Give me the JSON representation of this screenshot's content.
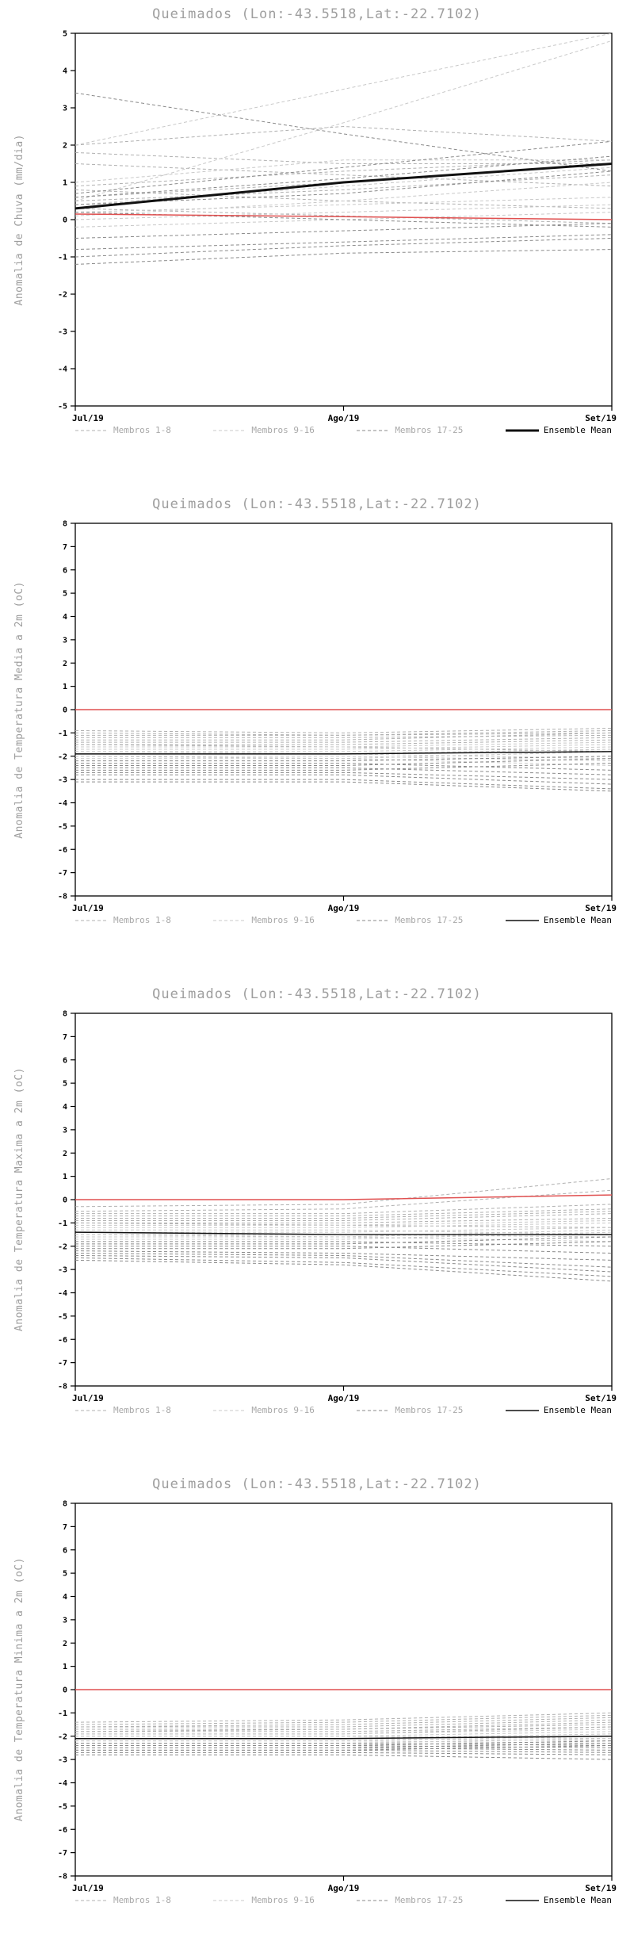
{
  "colors": {
    "title_text": "#9e9e9e",
    "axis_text": "#000000",
    "axis_frame": "#000000",
    "reference_red": "#e05050",
    "members_1_8": "#b0b0b0",
    "members_9_16": "#c8c8c8",
    "members_17_25": "#8a8a8a",
    "ensemble_mean": "#111111"
  },
  "chart_data": [
    {
      "type": "line",
      "title": "Queimados (Lon:-43.5518,Lat:-22.7102)",
      "ylabel": "Anomalia de Chuva (mm/dia)",
      "x_labels": [
        "Jul/19",
        "Ago/19",
        "Set/19"
      ],
      "ylim": [
        -5,
        5
      ],
      "ytick_step": 1,
      "grid": false,
      "legend_position": "bottom",
      "reference_line": {
        "color": "#e05050",
        "width": 1.5,
        "values": [
          0.15,
          0.08,
          0.0
        ]
      },
      "ensemble_mean": {
        "color": "#111111",
        "width": 3,
        "values": [
          0.3,
          1.0,
          1.5
        ]
      },
      "member_groups": [
        {
          "name": "Membros 1-8",
          "color": "#b0b0b0",
          "members": [
            [
              0.6,
              1.0,
              1.5
            ],
            [
              0.5,
              0.8,
              1.2
            ],
            [
              2.0,
              2.5,
              2.1
            ],
            [
              1.5,
              1.2,
              0.9
            ],
            [
              0.8,
              0.5,
              0.3
            ],
            [
              0.3,
              0.1,
              -0.1
            ],
            [
              0.9,
              1.3,
              1.6
            ],
            [
              1.8,
              1.5,
              1.5
            ]
          ]
        },
        {
          "name": "Membros 9-16",
          "color": "#c8c8c8",
          "members": [
            [
              2.0,
              3.5,
              5.0
            ],
            [
              0.5,
              2.6,
              4.8
            ],
            [
              0.2,
              0.4,
              0.6
            ],
            [
              0.0,
              0.2,
              0.4
            ],
            [
              -0.2,
              0.0,
              0.2
            ],
            [
              0.4,
              0.9,
              1.4
            ],
            [
              1.0,
              1.6,
              1.6
            ],
            [
              0.1,
              0.5,
              1.0
            ]
          ]
        },
        {
          "name": "Membros 17-25",
          "color": "#8a8a8a",
          "members": [
            [
              3.4,
              2.3,
              1.3
            ],
            [
              -0.5,
              -0.3,
              -0.1
            ],
            [
              -0.8,
              -0.6,
              -0.4
            ],
            [
              -1.0,
              -0.7,
              -0.5
            ],
            [
              -1.2,
              -0.9,
              -0.8
            ],
            [
              0.2,
              0.0,
              -0.2
            ],
            [
              0.7,
              1.4,
              2.1
            ],
            [
              0.6,
              1.1,
              1.7
            ],
            [
              0.4,
              0.7,
              1.3
            ]
          ]
        }
      ],
      "legend": [
        {
          "label": "Membros 1-8",
          "color": "#b0b0b0",
          "style": "dashed",
          "width": 1,
          "label_color": "#a8a8a8"
        },
        {
          "label": "Membros 9-16",
          "color": "#c8c8c8",
          "style": "dashed",
          "width": 1,
          "label_color": "#a8a8a8"
        },
        {
          "label": "Membros 17-25",
          "color": "#8a8a8a",
          "style": "dashed",
          "width": 1,
          "label_color": "#a8a8a8"
        },
        {
          "label": "Ensemble Mean",
          "color": "#111111",
          "style": "solid",
          "width": 3,
          "label_color": "#000000"
        }
      ]
    },
    {
      "type": "line",
      "title": "Queimados (Lon:-43.5518,Lat:-22.7102)",
      "ylabel": "Anomalia de Temperatura Media a 2m (oC)",
      "x_labels": [
        "Jul/19",
        "Ago/19",
        "Set/19"
      ],
      "ylim": [
        -8,
        8
      ],
      "ytick_step": 1,
      "grid": false,
      "legend_position": "bottom",
      "reference_line": {
        "color": "#e05050",
        "width": 1.5,
        "values": [
          0.0,
          0.0,
          0.0
        ]
      },
      "ensemble_mean": {
        "color": "#111111",
        "width": 1.5,
        "values": [
          -1.9,
          -1.9,
          -1.8
        ]
      },
      "member_groups": [
        {
          "name": "Membros 1-8",
          "color": "#b0b0b0",
          "members": [
            [
              -0.9,
              -1.0,
              -0.8
            ],
            [
              -1.0,
              -1.1,
              -0.9
            ],
            [
              -1.1,
              -1.1,
              -1.0
            ],
            [
              -1.2,
              -1.2,
              -1.1
            ],
            [
              -1.3,
              -1.3,
              -1.0
            ],
            [
              -1.4,
              -1.4,
              -1.2
            ],
            [
              -1.5,
              -1.5,
              -1.3
            ],
            [
              -1.5,
              -1.6,
              -1.8
            ]
          ]
        },
        {
          "name": "Membros 9-16",
          "color": "#c8c8c8",
          "members": [
            [
              -1.6,
              -1.6,
              -1.4
            ],
            [
              -1.7,
              -1.7,
              -1.5
            ],
            [
              -1.8,
              -1.8,
              -1.6
            ],
            [
              -1.8,
              -1.9,
              -2.1
            ],
            [
              -1.9,
              -1.9,
              -1.7
            ],
            [
              -2.0,
              -2.0,
              -2.2
            ],
            [
              -2.0,
              -2.1,
              -1.8
            ],
            [
              -2.1,
              -2.1,
              -2.4
            ]
          ]
        },
        {
          "name": "Membros 17-25",
          "color": "#8a8a8a",
          "members": [
            [
              -2.2,
              -2.2,
              -2.0
            ],
            [
              -2.3,
              -2.3,
              -2.6
            ],
            [
              -2.4,
              -2.4,
              -2.1
            ],
            [
              -2.5,
              -2.5,
              -2.8
            ],
            [
              -2.6,
              -2.6,
              -2.3
            ],
            [
              -2.7,
              -2.7,
              -3.0
            ],
            [
              -2.8,
              -2.8,
              -3.2
            ],
            [
              -3.0,
              -3.0,
              -3.4
            ],
            [
              -3.1,
              -3.1,
              -3.5
            ]
          ]
        }
      ],
      "legend": [
        {
          "label": "Membros 1-8",
          "color": "#b0b0b0",
          "style": "dashed",
          "width": 1,
          "label_color": "#a8a8a8"
        },
        {
          "label": "Membros 9-16",
          "color": "#c8c8c8",
          "style": "dashed",
          "width": 1,
          "label_color": "#a8a8a8"
        },
        {
          "label": "Membros 17-25",
          "color": "#8a8a8a",
          "style": "dashed",
          "width": 1,
          "label_color": "#a8a8a8"
        },
        {
          "label": "Ensemble Mean",
          "color": "#111111",
          "style": "solid",
          "width": 1.5,
          "label_color": "#000000"
        }
      ]
    },
    {
      "type": "line",
      "title": "Queimados (Lon:-43.5518,Lat:-22.7102)",
      "ylabel": "Anomalia de Temperatura Maxima a 2m (oC)",
      "x_labels": [
        "Jul/19",
        "Ago/19",
        "Set/19"
      ],
      "ylim": [
        -8,
        8
      ],
      "ytick_step": 1,
      "grid": false,
      "legend_position": "bottom",
      "reference_line": {
        "color": "#e05050",
        "width": 1.5,
        "values": [
          0.0,
          0.0,
          0.2
        ]
      },
      "ensemble_mean": {
        "color": "#111111",
        "width": 1.5,
        "values": [
          -1.4,
          -1.5,
          -1.5
        ]
      },
      "member_groups": [
        {
          "name": "Membros 1-8",
          "color": "#b0b0b0",
          "members": [
            [
              -0.3,
              -0.2,
              0.9
            ],
            [
              -0.5,
              -0.4,
              0.4
            ],
            [
              -0.6,
              -0.6,
              -0.2
            ],
            [
              -0.7,
              -0.7,
              -0.4
            ],
            [
              -0.8,
              -0.8,
              -0.5
            ],
            [
              -0.9,
              -0.9,
              -0.6
            ],
            [
              -1.0,
              -1.0,
              -0.8
            ],
            [
              -1.0,
              -1.1,
              -1.2
            ]
          ]
        },
        {
          "name": "Membros 9-16",
          "color": "#c8c8c8",
          "members": [
            [
              -1.1,
              -1.1,
              -0.9
            ],
            [
              -1.2,
              -1.2,
              -1.0
            ],
            [
              -1.3,
              -1.3,
              -1.5
            ],
            [
              -1.4,
              -1.4,
              -1.2
            ],
            [
              -1.5,
              -1.5,
              -1.6
            ],
            [
              -1.5,
              -1.6,
              -1.3
            ],
            [
              -1.6,
              -1.6,
              -1.8
            ],
            [
              -1.7,
              -1.7,
              -1.4
            ]
          ]
        },
        {
          "name": "Membros 17-25",
          "color": "#8a8a8a",
          "members": [
            [
              -1.8,
              -1.8,
              -2.0
            ],
            [
              -1.9,
              -1.9,
              -1.6
            ],
            [
              -2.0,
              -2.0,
              -2.3
            ],
            [
              -2.1,
              -2.1,
              -1.8
            ],
            [
              -2.2,
              -2.3,
              -2.6
            ],
            [
              -2.3,
              -2.4,
              -2.9
            ],
            [
              -2.4,
              -2.5,
              -3.1
            ],
            [
              -2.5,
              -2.7,
              -3.3
            ],
            [
              -2.6,
              -2.8,
              -3.5
            ]
          ]
        }
      ],
      "legend": [
        {
          "label": "Membros 1-8",
          "color": "#b0b0b0",
          "style": "dashed",
          "width": 1,
          "label_color": "#a8a8a8"
        },
        {
          "label": "Membros 9-16",
          "color": "#c8c8c8",
          "style": "dashed",
          "width": 1,
          "label_color": "#a8a8a8"
        },
        {
          "label": "Membros 17-25",
          "color": "#8a8a8a",
          "style": "dashed",
          "width": 1,
          "label_color": "#a8a8a8"
        },
        {
          "label": "Ensemble Mean",
          "color": "#111111",
          "style": "solid",
          "width": 1.5,
          "label_color": "#000000"
        }
      ]
    },
    {
      "type": "line",
      "title": "Queimados (Lon:-43.5518,Lat:-22.7102)",
      "ylabel": "Anomalia de Temperatura Minima a 2m (oC)",
      "x_labels": [
        "Jul/19",
        "Ago/19",
        "Set/19"
      ],
      "ylim": [
        -8,
        8
      ],
      "ytick_step": 1,
      "grid": false,
      "legend_position": "bottom",
      "reference_line": {
        "color": "#e05050",
        "width": 1.5,
        "values": [
          0.0,
          0.0,
          0.0
        ]
      },
      "ensemble_mean": {
        "color": "#111111",
        "width": 1.5,
        "values": [
          -2.1,
          -2.1,
          -2.0
        ]
      },
      "member_groups": [
        {
          "name": "Membros 1-8",
          "color": "#b0b0b0",
          "members": [
            [
              -1.4,
              -1.3,
              -1.0
            ],
            [
              -1.5,
              -1.4,
              -1.1
            ],
            [
              -1.6,
              -1.5,
              -1.2
            ],
            [
              -1.6,
              -1.6,
              -1.3
            ],
            [
              -1.7,
              -1.7,
              -1.4
            ],
            [
              -1.8,
              -1.7,
              -1.5
            ],
            [
              -1.8,
              -1.8,
              -1.6
            ],
            [
              -1.9,
              -1.9,
              -1.6
            ]
          ]
        },
        {
          "name": "Membros 9-16",
          "color": "#c8c8c8",
          "members": [
            [
              -1.9,
              -1.9,
              -1.7
            ],
            [
              -2.0,
              -2.0,
              -1.8
            ],
            [
              -2.0,
              -2.0,
              -2.1
            ],
            [
              -2.1,
              -2.1,
              -1.9
            ],
            [
              -2.1,
              -2.1,
              -2.2
            ],
            [
              -2.2,
              -2.2,
              -2.0
            ],
            [
              -2.2,
              -2.2,
              -2.3
            ],
            [
              -2.3,
              -2.3,
              -2.1
            ]
          ]
        },
        {
          "name": "Membros 17-25",
          "color": "#8a8a8a",
          "members": [
            [
              -2.3,
              -2.3,
              -2.4
            ],
            [
              -2.4,
              -2.4,
              -2.2
            ],
            [
              -2.4,
              -2.4,
              -2.5
            ],
            [
              -2.5,
              -2.5,
              -2.3
            ],
            [
              -2.5,
              -2.5,
              -2.6
            ],
            [
              -2.6,
              -2.6,
              -2.4
            ],
            [
              -2.6,
              -2.6,
              -2.7
            ],
            [
              -2.7,
              -2.7,
              -2.8
            ],
            [
              -2.8,
              -2.8,
              -3.0
            ]
          ]
        }
      ],
      "legend": [
        {
          "label": "Membros 1-8",
          "color": "#b0b0b0",
          "style": "dashed",
          "width": 1,
          "label_color": "#a8a8a8"
        },
        {
          "label": "Membros 9-16",
          "color": "#c8c8c8",
          "style": "dashed",
          "width": 1,
          "label_color": "#a8a8a8"
        },
        {
          "label": "Membros 17-25",
          "color": "#8a8a8a",
          "style": "dashed",
          "width": 1,
          "label_color": "#a8a8a8"
        },
        {
          "label": "Ensemble Mean",
          "color": "#111111",
          "style": "solid",
          "width": 1.5,
          "label_color": "#000000"
        }
      ]
    }
  ]
}
